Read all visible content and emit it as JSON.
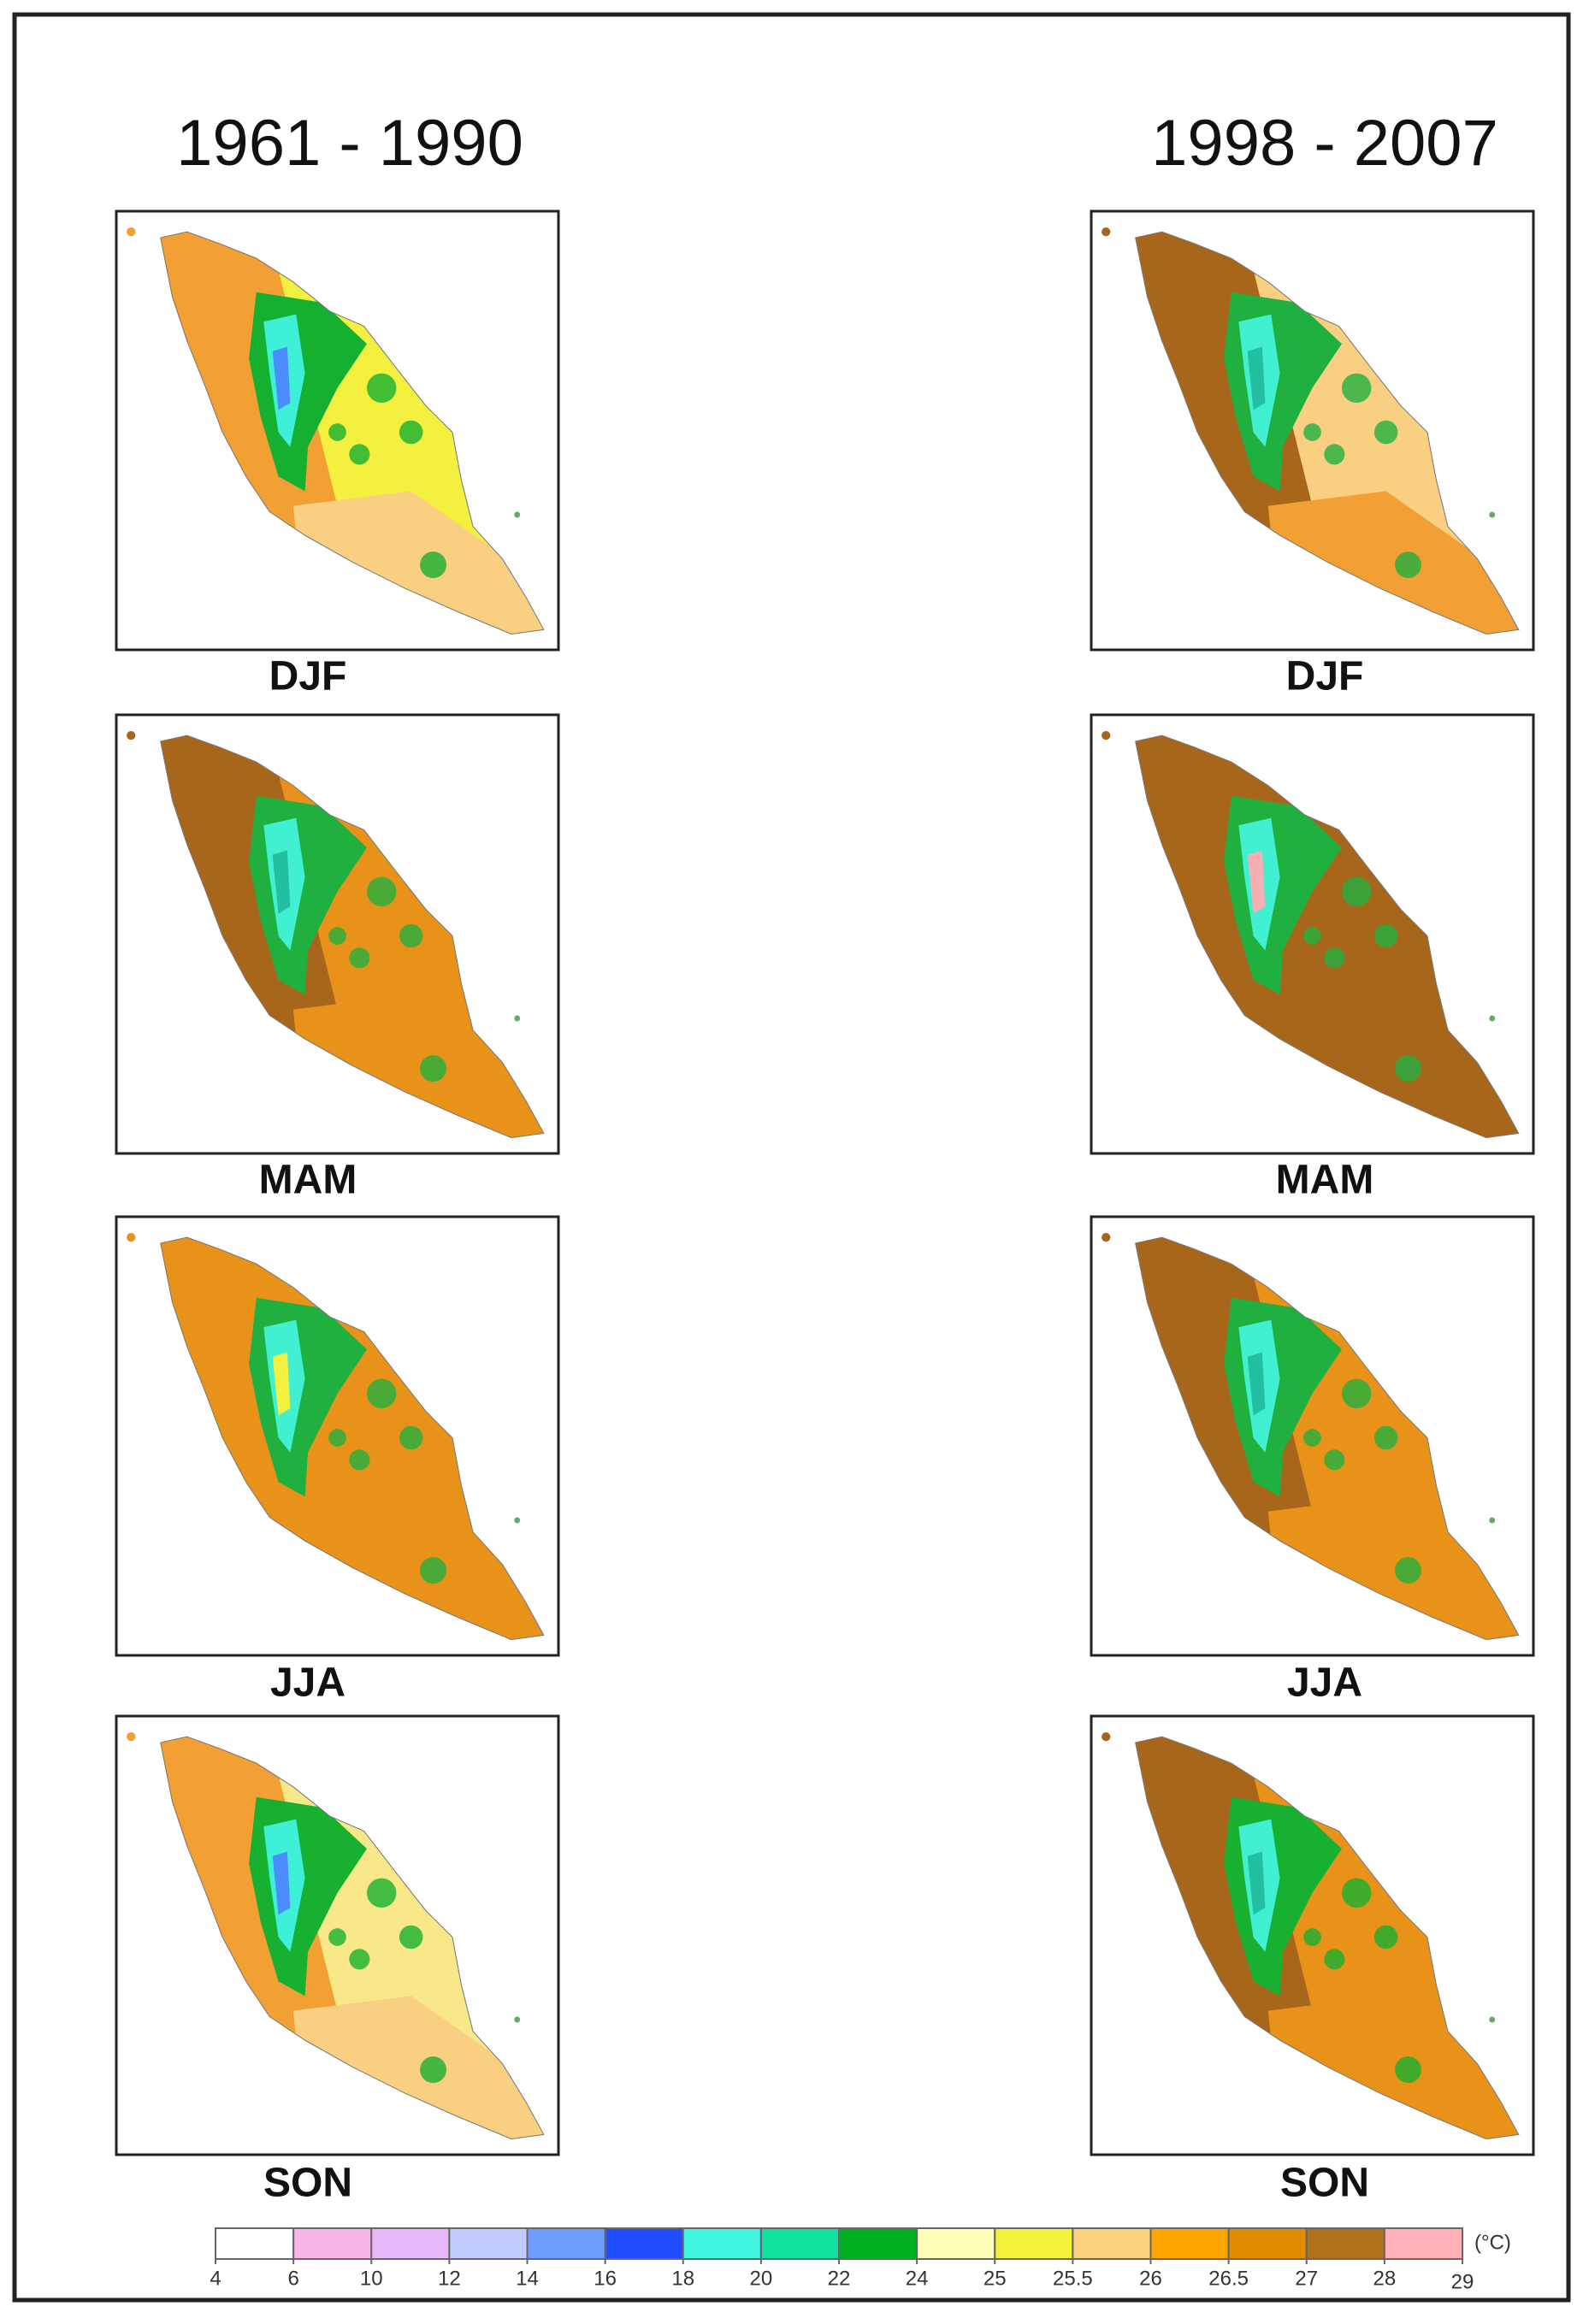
{
  "columns": [
    {
      "title": "1961 - 1990",
      "panels": [
        {
          "label": "DJF"
        },
        {
          "label": "MAM"
        },
        {
          "label": "JJA"
        },
        {
          "label": "SON"
        }
      ]
    },
    {
      "title": "1998 - 2007",
      "panels": [
        {
          "label": "DJF"
        },
        {
          "label": "MAM"
        },
        {
          "label": "JJA"
        },
        {
          "label": "SON"
        }
      ]
    }
  ],
  "legend": {
    "colors": [
      "#ffffff",
      "#f9b5e8",
      "#e8b8f8",
      "#c4ccff",
      "#6f9cff",
      "#1f4cff",
      "#3ff5e0",
      "#10e0a0",
      "#00b020",
      "#ffffb8",
      "#f2f23c",
      "#fdd27e",
      "#ffa500",
      "#e38c00",
      "#b0701a",
      "#ffb3b8"
    ],
    "ticks": [
      4,
      6,
      10,
      12,
      14,
      16,
      18,
      20,
      22,
      24,
      25,
      25.5,
      26,
      26.5,
      27,
      28,
      29
    ],
    "unit": "(°C)"
  }
}
